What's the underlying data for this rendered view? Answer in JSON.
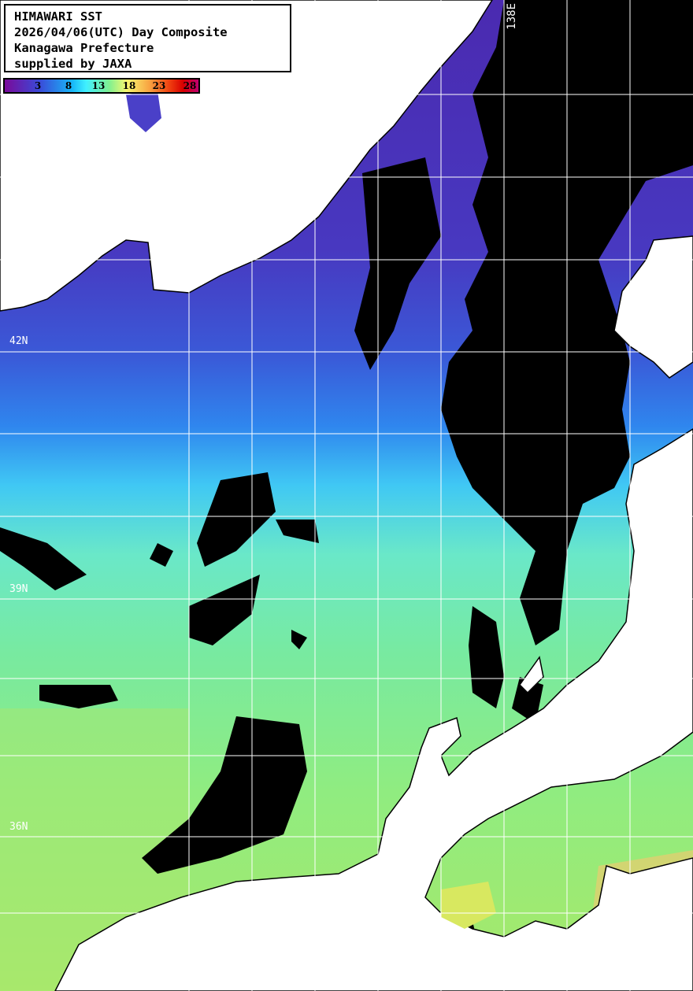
{
  "header": {
    "lines": [
      "HIMAWARI SST",
      "2026/04/06(UTC) Day Composite",
      "Kanagawa Prefecture",
      "supplied by JAXA"
    ]
  },
  "colorbar": {
    "ticks": [
      "3",
      "8",
      "13",
      "18",
      "23",
      "28"
    ],
    "colors": [
      "#7a0a9a",
      "#3a4ad8",
      "#18b8f8",
      "#80f090",
      "#f8f870",
      "#f8a040",
      "#d80000",
      "#c00070"
    ]
  },
  "grid_labels": {
    "lat": [
      "42N",
      "39N",
      "36N"
    ],
    "lon": [
      "138E"
    ]
  },
  "legend_colors": {
    "land": "#ffffff",
    "cloud": "#000000",
    "grid": "#ffffff"
  }
}
